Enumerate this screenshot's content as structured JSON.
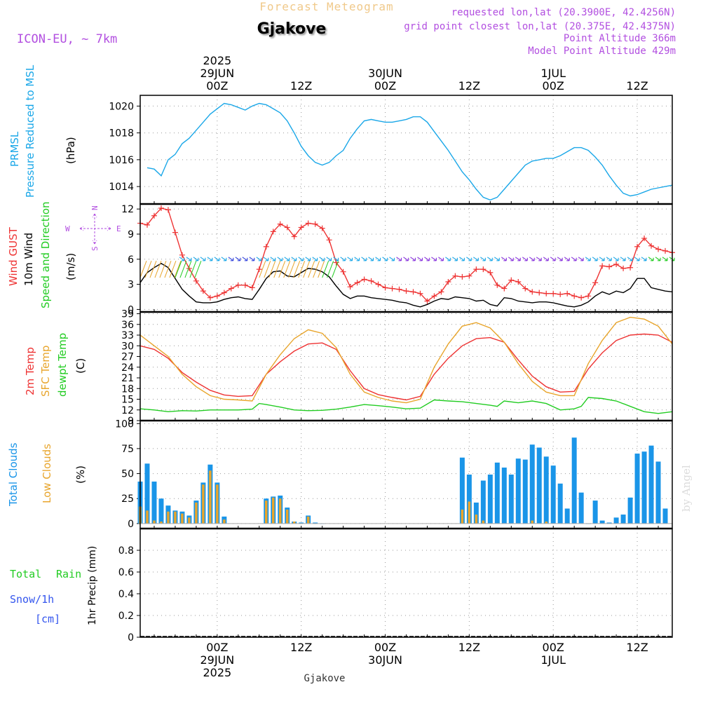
{
  "header": {
    "super_title": "Forecast Meteogram",
    "location": "Gjakove",
    "model": "ICON-EU, ~ 7km",
    "requested": "requested lon,lat (20.3900E, 42.4256N)",
    "grid_point": "grid point closest lon,lat (20.375E, 42.4375N)",
    "point_alt": "Point Altitude 366m",
    "model_alt": "Model Point Altitude 429m",
    "footer_location": "Gjakove",
    "watermark": "by Angel"
  },
  "colors": {
    "pressure": "#1aa7e8",
    "gust": "#ee3333",
    "wind": "#000000",
    "temp2m": "#ee3333",
    "sfc": "#e8a52c",
    "dewpt": "#22cc22",
    "total_cloud": "#1a95e8",
    "low_cloud": "#e8a52c",
    "label_purple": "#b24fe0",
    "snow": "#3355ee"
  },
  "time_axis": {
    "top": [
      {
        "h": 0,
        "lines": [
          "2025",
          "29JUN",
          "00Z"
        ]
      },
      {
        "h": 12,
        "lines": [
          "12Z"
        ]
      },
      {
        "h": 24,
        "lines": [
          "30JUN",
          "00Z"
        ]
      },
      {
        "h": 36,
        "lines": [
          "12Z"
        ]
      },
      {
        "h": 48,
        "lines": [
          "1JUL",
          "00Z"
        ]
      },
      {
        "h": 60,
        "lines": [
          "12Z"
        ]
      }
    ],
    "bottom": [
      {
        "h": 0,
        "lines": [
          "00Z",
          "29JUN",
          "2025"
        ]
      },
      {
        "h": 12,
        "lines": [
          "12Z"
        ]
      },
      {
        "h": 24,
        "lines": [
          "00Z",
          "30JUN"
        ]
      },
      {
        "h": 36,
        "lines": [
          "12Z"
        ]
      },
      {
        "h": 48,
        "lines": [
          "00Z",
          "1JUL"
        ]
      },
      {
        "h": 60,
        "lines": [
          "12Z"
        ]
      }
    ]
  },
  "panels": {
    "pressure": {
      "labels": [
        "PRMSL",
        "Pressure Reduced to MSL",
        "(hPa)"
      ]
    },
    "wind": {
      "labels": [
        "Wind GUST",
        "10m Wind",
        "Speed and Direction",
        "(m/s)"
      ],
      "compass": [
        "N",
        "S",
        "W",
        "E"
      ]
    },
    "temp": {
      "labels": [
        "2m Temp",
        "SFC Temp",
        "dewpt Temp",
        "(C)"
      ]
    },
    "cloud": {
      "labels": [
        "Total Clouds",
        "Low Clouds",
        "(%)"
      ]
    },
    "precip": {
      "labels": [
        "Total",
        "Rain",
        "Snow/1h",
        "[cm]",
        "1hr Precip (mm)"
      ]
    }
  },
  "chart_data": [
    {
      "type": "line",
      "title": "PRMSL Pressure Reduced to MSL",
      "ylabel": "(hPa)",
      "ylim": [
        1012.7,
        1020.8
      ],
      "yticks": [
        1014,
        1016,
        1018,
        1020
      ],
      "x_start_h": -11,
      "x_end_h": 65,
      "grid": true,
      "series": [
        {
          "name": "PRMSL",
          "x": [
            -10,
            -9,
            -8,
            -7,
            -6,
            -5,
            -4,
            -3,
            -2,
            -1,
            0,
            1,
            2,
            3,
            4,
            5,
            6,
            7,
            8,
            9,
            10,
            11,
            12,
            13,
            14,
            15,
            16,
            17,
            18,
            19,
            20,
            21,
            22,
            23,
            24,
            25,
            26,
            27,
            28,
            29,
            30,
            31,
            32,
            33,
            34,
            35,
            36,
            37,
            38,
            39,
            40,
            41,
            42,
            43,
            44,
            45,
            46,
            47,
            48,
            49,
            50,
            51,
            52,
            53,
            54,
            55,
            56,
            57,
            58,
            59,
            60,
            61,
            62,
            63,
            64,
            65
          ],
          "values": [
            1015.4,
            1015.3,
            1014.8,
            1016.0,
            1016.4,
            1017.2,
            1017.6,
            1018.2,
            1018.8,
            1019.4,
            1019.8,
            1020.2,
            1020.1,
            1019.9,
            1019.7,
            1020.0,
            1020.2,
            1020.1,
            1019.8,
            1019.5,
            1018.9,
            1018.0,
            1017.0,
            1016.3,
            1015.8,
            1015.6,
            1015.8,
            1016.3,
            1016.7,
            1017.6,
            1018.3,
            1018.9,
            1019.0,
            1018.9,
            1018.8,
            1018.8,
            1018.9,
            1019.0,
            1019.2,
            1019.2,
            1018.8,
            1018.1,
            1017.4,
            1016.7,
            1015.9,
            1015.1,
            1014.5,
            1013.8,
            1013.2,
            1013.0,
            1013.2,
            1013.8,
            1014.4,
            1015.0,
            1015.6,
            1015.9,
            1016.0,
            1016.1,
            1016.1,
            1016.3,
            1016.6,
            1016.9,
            1016.9,
            1016.7,
            1016.2,
            1015.6,
            1014.8,
            1014.1,
            1013.5,
            1013.3,
            1013.4,
            1013.6,
            1013.8,
            1013.9,
            1014.0,
            1014.1
          ]
        }
      ]
    },
    {
      "type": "line",
      "title": "Wind GUST / 10m Wind Speed and Direction",
      "ylabel": "(m/s)",
      "ylim": [
        -0.3,
        12.6
      ],
      "yticks": [
        0,
        3,
        6,
        9,
        12
      ],
      "x_start_h": -11,
      "x_end_h": 65,
      "grid": true,
      "series": [
        {
          "name": "Wind GUST",
          "x": [
            -11,
            -10,
            -9,
            -8,
            -7,
            -6,
            -5,
            -4,
            -3,
            -2,
            -1,
            0,
            1,
            2,
            3,
            4,
            5,
            6,
            7,
            8,
            9,
            10,
            11,
            12,
            13,
            14,
            15,
            16,
            17,
            18,
            19,
            20,
            21,
            22,
            23,
            24,
            25,
            26,
            27,
            28,
            29,
            30,
            31,
            32,
            33,
            34,
            35,
            36,
            37,
            38,
            39,
            40,
            41,
            42,
            43,
            44,
            45,
            46,
            47,
            48,
            49,
            50,
            51,
            52,
            53,
            54,
            55,
            56,
            57,
            58,
            59,
            60,
            61,
            62,
            63,
            64,
            65
          ],
          "values": [
            10.3,
            10.1,
            11.2,
            12.1,
            11.9,
            9.2,
            6.5,
            4.9,
            3.4,
            2.2,
            1.4,
            1.6,
            2.0,
            2.5,
            2.9,
            2.9,
            2.6,
            4.8,
            7.5,
            9.3,
            10.2,
            9.8,
            8.7,
            9.8,
            10.3,
            10.2,
            9.7,
            8.3,
            5.6,
            4.5,
            2.7,
            3.2,
            3.6,
            3.4,
            3.0,
            2.6,
            2.5,
            2.4,
            2.2,
            2.1,
            1.9,
            1.0,
            1.6,
            2.1,
            3.3,
            4.0,
            3.9,
            4.0,
            4.8,
            4.8,
            4.4,
            2.9,
            2.5,
            3.5,
            3.3,
            2.5,
            2.1,
            2.0,
            1.9,
            1.9,
            1.8,
            1.9,
            1.6,
            1.4,
            1.6,
            3.2,
            5.2,
            5.1,
            5.4,
            4.9,
            5.0,
            7.5,
            8.5,
            7.6,
            7.2,
            7.0,
            6.8
          ]
        },
        {
          "name": "10m Wind",
          "x": [
            -11,
            -10,
            -9,
            -8,
            -7,
            -6,
            -5,
            -4,
            -3,
            -2,
            -1,
            0,
            1,
            2,
            3,
            4,
            5,
            6,
            7,
            8,
            9,
            10,
            11,
            12,
            13,
            14,
            15,
            16,
            17,
            18,
            19,
            20,
            21,
            22,
            23,
            24,
            25,
            26,
            27,
            28,
            29,
            30,
            31,
            32,
            33,
            34,
            35,
            36,
            37,
            38,
            39,
            40,
            41,
            42,
            43,
            44,
            45,
            46,
            47,
            48,
            49,
            50,
            51,
            52,
            53,
            54,
            55,
            56,
            57,
            58,
            59,
            60,
            61,
            62,
            63,
            64,
            65
          ],
          "values": [
            3.2,
            4.4,
            5.0,
            5.5,
            5.0,
            3.7,
            2.4,
            1.6,
            0.9,
            0.8,
            0.8,
            0.9,
            1.2,
            1.4,
            1.5,
            1.3,
            1.2,
            2.4,
            3.7,
            4.5,
            4.6,
            4.0,
            3.9,
            4.4,
            4.9,
            4.8,
            4.5,
            3.9,
            2.8,
            1.8,
            1.3,
            1.6,
            1.6,
            1.4,
            1.3,
            1.2,
            1.1,
            0.9,
            0.8,
            0.5,
            0.3,
            0.6,
            1.0,
            1.3,
            1.2,
            1.5,
            1.4,
            1.3,
            1.0,
            1.1,
            0.6,
            0.4,
            1.4,
            1.3,
            1.0,
            0.9,
            0.8,
            0.9,
            0.9,
            0.8,
            0.6,
            0.4,
            0.3,
            0.5,
            0.9,
            1.6,
            2.1,
            1.8,
            2.2,
            2.0,
            2.5,
            3.7,
            3.7,
            2.6,
            2.4,
            2.2,
            2.1
          ]
        }
      ]
    },
    {
      "type": "line",
      "title": "2m Temp / SFC Temp / dewpt Temp",
      "ylabel": "(C)",
      "ylim": [
        9,
        39.5
      ],
      "yticks": [
        9,
        12,
        15,
        18,
        21,
        24,
        27,
        30,
        33,
        36,
        39
      ],
      "x_start_h": -11,
      "x_end_h": 65,
      "grid": true,
      "series": [
        {
          "name": "2m Temp",
          "x": [
            -11,
            -9,
            -7,
            -5,
            -3,
            -1,
            1,
            3,
            5,
            7,
            9,
            11,
            13,
            15,
            17,
            19,
            21,
            23,
            25,
            27,
            29,
            31,
            33,
            35,
            37,
            39,
            41,
            43,
            45,
            47,
            49,
            51,
            53,
            55,
            57,
            59,
            61,
            63,
            65
          ],
          "values": [
            30.0,
            29.0,
            26.5,
            22.5,
            19.8,
            17.5,
            16.2,
            15.8,
            16.0,
            22.0,
            25.5,
            28.5,
            30.5,
            30.8,
            29.0,
            23.0,
            18.0,
            16.3,
            15.5,
            14.8,
            15.8,
            22.0,
            26.5,
            30.0,
            32.0,
            32.3,
            31.0,
            26.0,
            21.5,
            18.5,
            17.0,
            17.2,
            23.5,
            28.0,
            31.5,
            33.0,
            33.3,
            33.0,
            31.0
          ]
        },
        {
          "name": "SFC Temp",
          "x": [
            -11,
            -9,
            -7,
            -5,
            -3,
            -1,
            1,
            3,
            5,
            7,
            9,
            11,
            13,
            15,
            17,
            19,
            21,
            23,
            25,
            27,
            29,
            31,
            33,
            35,
            37,
            39,
            41,
            43,
            45,
            47,
            49,
            51,
            53,
            55,
            57,
            59,
            61,
            63,
            65
          ],
          "values": [
            33.0,
            30.0,
            27.0,
            22.0,
            18.5,
            16.0,
            15.0,
            14.8,
            14.5,
            22.0,
            27.5,
            32.0,
            34.5,
            33.5,
            29.5,
            22.0,
            17.0,
            15.5,
            14.5,
            14.0,
            15.0,
            24.0,
            30.5,
            35.5,
            36.5,
            35.0,
            31.0,
            25.0,
            20.0,
            17.0,
            16.0,
            16.0,
            25.0,
            31.5,
            36.5,
            38.0,
            37.5,
            35.5,
            30.5
          ]
        },
        {
          "name": "dewpt Temp",
          "x": [
            -11,
            -9,
            -7,
            -5,
            -3,
            -1,
            1,
            3,
            5,
            6,
            7,
            9,
            11,
            13,
            15,
            17,
            19,
            21,
            23,
            25,
            27,
            29,
            31,
            33,
            35,
            37,
            39,
            40,
            41,
            43,
            45,
            47,
            49,
            51,
            52,
            53,
            55,
            57,
            59,
            61,
            63,
            65
          ],
          "values": [
            12.3,
            12.0,
            11.5,
            11.8,
            11.7,
            12.0,
            12.0,
            12.0,
            12.2,
            13.8,
            13.5,
            12.8,
            12.0,
            11.8,
            11.9,
            12.2,
            12.8,
            13.5,
            13.2,
            12.8,
            12.3,
            12.5,
            14.8,
            14.5,
            14.3,
            13.8,
            13.3,
            13.0,
            14.5,
            14.0,
            14.5,
            13.8,
            12.0,
            12.3,
            13.0,
            15.5,
            15.2,
            14.5,
            13.0,
            11.5,
            11.0,
            11.5
          ]
        }
      ]
    },
    {
      "type": "bar",
      "title": "Total Clouds / Low Clouds",
      "ylabel": "(%)",
      "ylim": [
        -5,
        103
      ],
      "yticks": [
        0,
        25,
        50,
        75,
        100
      ],
      "x_start_h": -11,
      "x_end_h": 65,
      "grid": true,
      "series": [
        {
          "name": "Total Clouds",
          "x": [
            -11,
            -10,
            -9,
            -8,
            -7,
            -6,
            -5,
            -4,
            -3,
            -2,
            -1,
            0,
            1,
            7,
            8,
            9,
            10,
            11,
            12,
            13,
            14,
            15,
            35,
            36,
            37,
            38,
            39,
            40,
            41,
            42,
            43,
            44,
            45,
            46,
            47,
            48,
            49,
            50,
            51,
            52,
            53,
            54,
            55,
            56,
            57,
            58,
            59,
            60,
            61,
            62,
            63,
            64
          ],
          "values": [
            42,
            60,
            42,
            25,
            18,
            13,
            12,
            8,
            23,
            41,
            59,
            41,
            7,
            25,
            27,
            28,
            16,
            2,
            1,
            8,
            1,
            0,
            66,
            49,
            21,
            43,
            49,
            61,
            56,
            49,
            65,
            64,
            79,
            76,
            67,
            58,
            40,
            15,
            86,
            31,
            0,
            23,
            3,
            1,
            6,
            9,
            26,
            70,
            72,
            78,
            62,
            15
          ]
        },
        {
          "name": "Low Clouds",
          "x": [
            -11,
            -10,
            -9,
            -8,
            -7,
            -6,
            -5,
            -4,
            -3,
            -2,
            -1,
            0,
            1,
            7,
            8,
            9,
            10,
            11,
            12,
            13,
            14,
            35,
            36,
            37,
            38,
            39,
            45,
            47
          ],
          "values": [
            17,
            13,
            3,
            2,
            12,
            12,
            10,
            6,
            21,
            39,
            53,
            39,
            4,
            23,
            26,
            25,
            14,
            2,
            0,
            7,
            0,
            14,
            22,
            9,
            3,
            0,
            3,
            2
          ]
        }
      ]
    },
    {
      "type": "bar",
      "title": "1hr Precip (mm)",
      "ylabel": "1hr Precip (mm)",
      "ylim": [
        0,
        1.0
      ],
      "yticks": [
        0,
        0.2,
        0.4,
        0.6,
        0.8
      ],
      "x_start_h": -11,
      "x_end_h": 65,
      "grid": true,
      "series": [
        {
          "name": "Total",
          "x": [],
          "values": []
        }
      ]
    }
  ]
}
